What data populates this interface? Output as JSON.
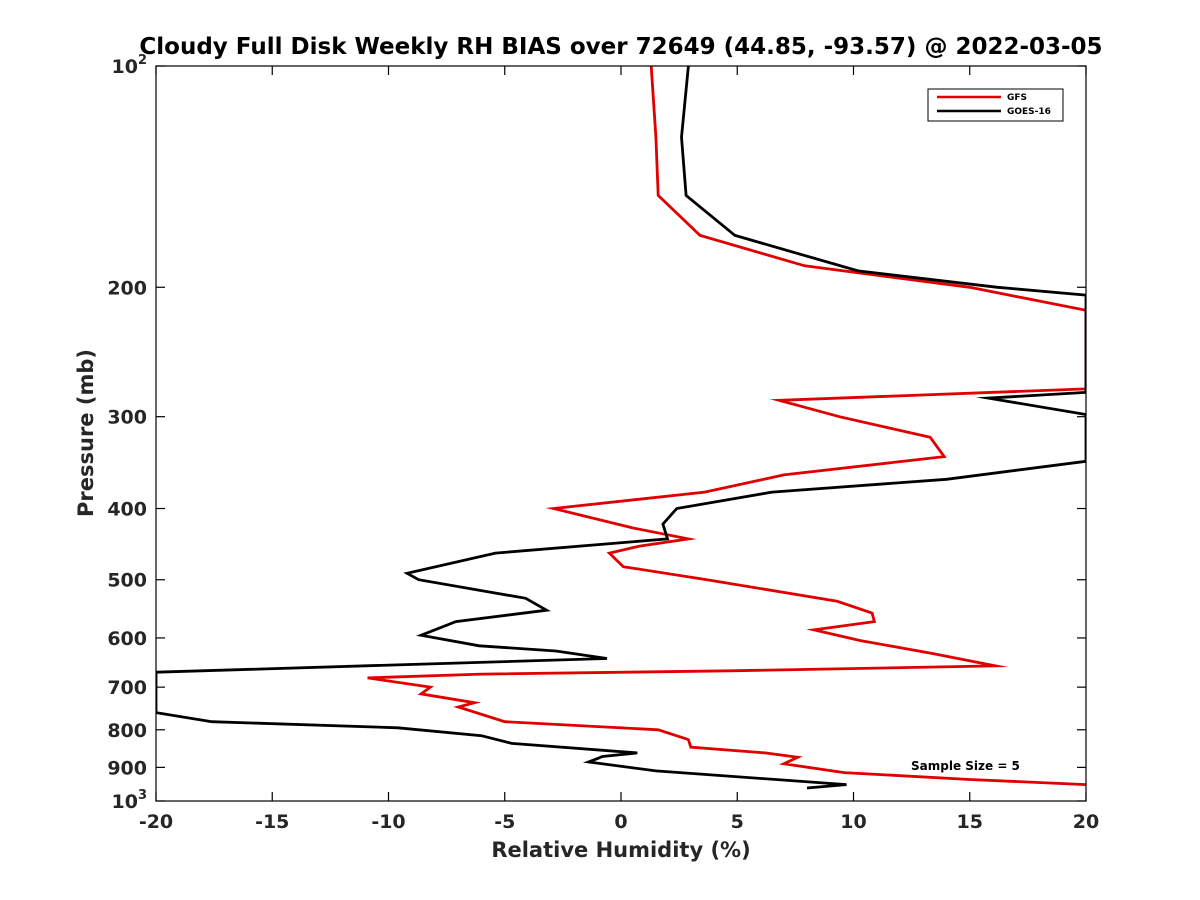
{
  "chart_data": {
    "type": "line",
    "title": "Cloudy Full Disk Weekly RH BIAS over 72649 (44.85, -93.57) @ 2022-03-05",
    "xlabel": "Relative Humidity (%)",
    "ylabel": "Pressure (mb)",
    "xlim": [
      -20,
      20
    ],
    "ylim": [
      100,
      1000
    ],
    "y_scale": "log",
    "y_reversed": true,
    "grid": false,
    "legend_position": "top-right",
    "x_ticks": [
      -20,
      -15,
      -10,
      -5,
      0,
      5,
      10,
      15,
      20
    ],
    "x_tick_labels": [
      "-20",
      "-15",
      "-10",
      "-5",
      "0",
      "5",
      "10",
      "15",
      "20"
    ],
    "y_ticks": [
      100,
      200,
      300,
      400,
      500,
      600,
      700,
      800,
      900,
      1000
    ],
    "y_tick_labels": [
      {
        "base": "10",
        "exp": "2"
      },
      {
        "base": "200",
        "exp": ""
      },
      {
        "base": "300",
        "exp": ""
      },
      {
        "base": "400",
        "exp": ""
      },
      {
        "base": "500",
        "exp": ""
      },
      {
        "base": "600",
        "exp": ""
      },
      {
        "base": "700",
        "exp": ""
      },
      {
        "base": "800",
        "exp": ""
      },
      {
        "base": "900",
        "exp": ""
      },
      {
        "base": "10",
        "exp": "3"
      }
    ],
    "annotation": "Sample Size = 5",
    "series": [
      {
        "name": "GFS",
        "color": "#e00000",
        "points": [
          [
            1.3,
            100
          ],
          [
            1.5,
            125
          ],
          [
            1.6,
            150
          ],
          [
            3.4,
            170
          ],
          [
            7.9,
            187
          ],
          [
            15,
            200
          ],
          [
            20,
            215
          ],
          [
            20,
            275
          ],
          [
            6.8,
            285
          ],
          [
            9.4,
            300
          ],
          [
            13.3,
            320
          ],
          [
            13.9,
            340
          ],
          [
            7.0,
            360
          ],
          [
            3.6,
            380
          ],
          [
            -2.9,
            400
          ],
          [
            0.5,
            425
          ],
          [
            2.9,
            440
          ],
          [
            0.8,
            450
          ],
          [
            -0.5,
            460
          ],
          [
            0.1,
            480
          ],
          [
            3.7,
            500
          ],
          [
            9.3,
            535
          ],
          [
            10.8,
            555
          ],
          [
            10.9,
            570
          ],
          [
            8.3,
            585
          ],
          [
            10.3,
            605
          ],
          [
            13.4,
            630
          ],
          [
            16.1,
            655
          ],
          [
            4.7,
            665
          ],
          [
            -6.0,
            672
          ],
          [
            -10.9,
            680
          ],
          [
            -8.2,
            700
          ],
          [
            -8.6,
            715
          ],
          [
            -6.3,
            735
          ],
          [
            -7.0,
            745
          ],
          [
            -5.0,
            780
          ],
          [
            1.6,
            800
          ],
          [
            2.9,
            825
          ],
          [
            3.0,
            845
          ],
          [
            6.2,
            860
          ],
          [
            7.6,
            872
          ],
          [
            7.0,
            890
          ],
          [
            9.6,
            915
          ],
          [
            15.0,
            935
          ],
          [
            20,
            950
          ]
        ]
      },
      {
        "name": "GOES-16",
        "color": "#000000",
        "points": [
          [
            2.9,
            100
          ],
          [
            2.6,
            125
          ],
          [
            2.8,
            150
          ],
          [
            4.9,
            170
          ],
          [
            10.2,
            190
          ],
          [
            16.2,
            200
          ],
          [
            20,
            205
          ],
          [
            20,
            278
          ],
          [
            15.8,
            283
          ],
          [
            20,
            298
          ],
          [
            20,
            345
          ],
          [
            14.0,
            365
          ],
          [
            6.5,
            380
          ],
          [
            2.4,
            400
          ],
          [
            1.8,
            420
          ],
          [
            2.0,
            440
          ],
          [
            -5.4,
            460
          ],
          [
            -9.2,
            490
          ],
          [
            -8.7,
            500
          ],
          [
            -4.1,
            530
          ],
          [
            -3.2,
            550
          ],
          [
            -7.1,
            570
          ],
          [
            -8.6,
            595
          ],
          [
            -6.1,
            615
          ],
          [
            -2.8,
            625
          ],
          [
            -0.6,
            640
          ],
          [
            -20,
            668
          ],
          [
            -20,
            758
          ],
          [
            -17.6,
            780
          ],
          [
            -9.6,
            795
          ],
          [
            -6.0,
            815
          ],
          [
            -4.7,
            835
          ],
          [
            0.7,
            860
          ],
          [
            -0.8,
            870
          ],
          [
            -1.0,
            875
          ],
          [
            -1.4,
            885
          ],
          [
            1.5,
            910
          ],
          [
            9.7,
            950
          ],
          [
            8.0,
            960
          ]
        ]
      }
    ]
  }
}
